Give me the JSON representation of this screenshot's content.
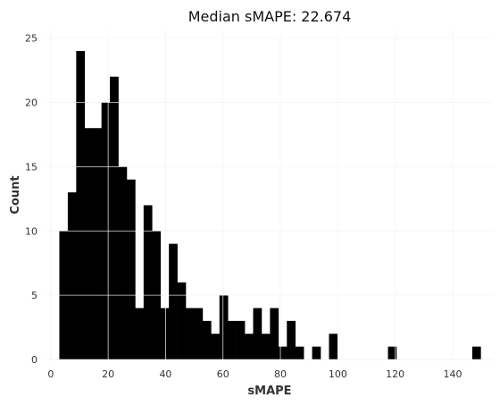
{
  "chart_data": {
    "type": "bar",
    "title": "Median sMAPE: 22.674",
    "xlabel": "sMAPE",
    "ylabel": "Count",
    "xlim": [
      -1.5,
      154.0
    ],
    "ylim": [
      0,
      25.6
    ],
    "xticks": [
      0,
      20,
      40,
      60,
      80,
      100,
      120,
      140
    ],
    "yticks": [
      0,
      5,
      10,
      15,
      20,
      25
    ],
    "grid": true,
    "bin_width": 2.935,
    "bins": [
      {
        "x": 3.0,
        "count": 10
      },
      {
        "x": 5.935,
        "count": 13
      },
      {
        "x": 8.87,
        "count": 24
      },
      {
        "x": 11.805,
        "count": 18
      },
      {
        "x": 14.74,
        "count": 18
      },
      {
        "x": 17.675,
        "count": 20
      },
      {
        "x": 20.61,
        "count": 22
      },
      {
        "x": 23.545,
        "count": 15
      },
      {
        "x": 26.48,
        "count": 14
      },
      {
        "x": 29.415,
        "count": 4
      },
      {
        "x": 32.35,
        "count": 12
      },
      {
        "x": 35.285,
        "count": 10
      },
      {
        "x": 38.22,
        "count": 4
      },
      {
        "x": 41.155,
        "count": 9
      },
      {
        "x": 44.09,
        "count": 6
      },
      {
        "x": 47.025,
        "count": 4
      },
      {
        "x": 49.96,
        "count": 4
      },
      {
        "x": 52.895,
        "count": 3
      },
      {
        "x": 55.83,
        "count": 2
      },
      {
        "x": 58.765,
        "count": 5
      },
      {
        "x": 61.7,
        "count": 3
      },
      {
        "x": 64.635,
        "count": 3
      },
      {
        "x": 67.57,
        "count": 2
      },
      {
        "x": 70.505,
        "count": 4
      },
      {
        "x": 73.44,
        "count": 2
      },
      {
        "x": 76.375,
        "count": 4
      },
      {
        "x": 79.31,
        "count": 1
      },
      {
        "x": 82.245,
        "count": 3
      },
      {
        "x": 85.18,
        "count": 1
      },
      {
        "x": 91.05,
        "count": 1
      },
      {
        "x": 96.92,
        "count": 2
      },
      {
        "x": 117.465,
        "count": 1
      },
      {
        "x": 146.815,
        "count": 1
      }
    ]
  }
}
